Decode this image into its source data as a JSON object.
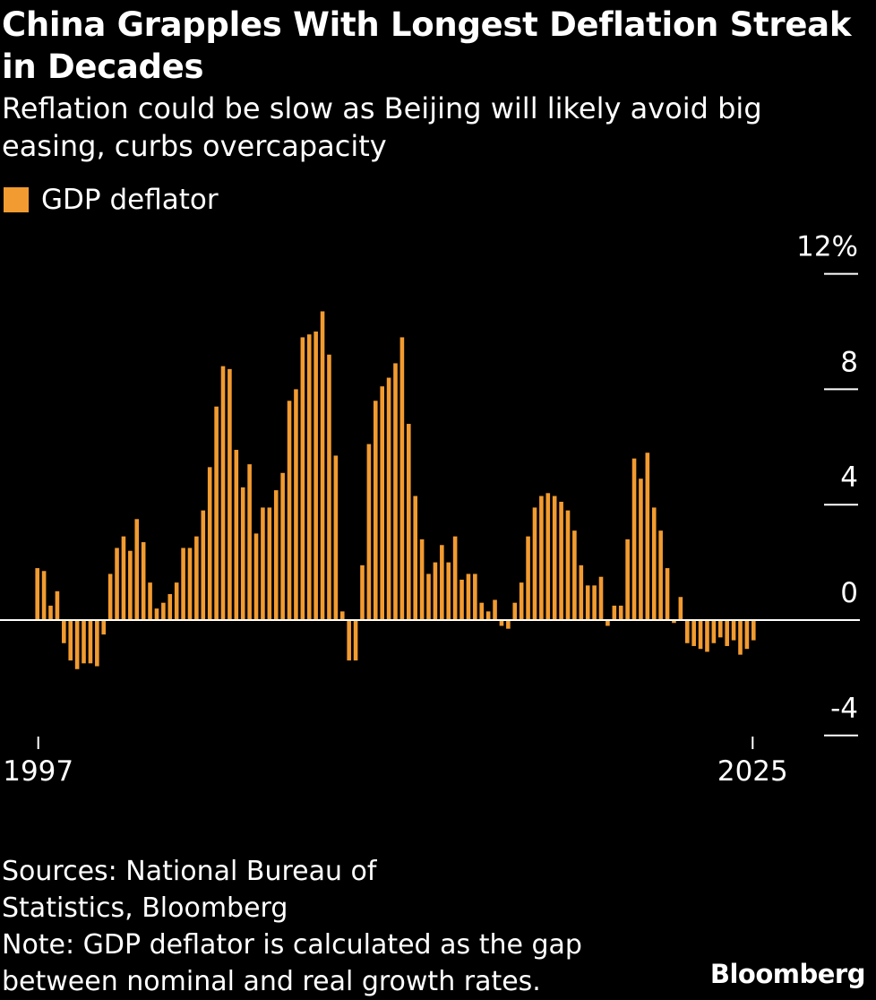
{
  "header": {
    "title_line1": "China Grapples With Longest Deflation Streak",
    "title_line2": "in Decades",
    "subtitle_line1": "Reflation could be slow as Beijing will likely avoid big",
    "subtitle_line2": "easing, curbs overcapacity"
  },
  "legend": {
    "label": "GDP deflator",
    "color": "#f29b30"
  },
  "colors": {
    "background": "#000000",
    "bar": "#f29b30",
    "text": "#ffffff",
    "zero_line": "#ffffff"
  },
  "footer": {
    "sources_line1": "Sources: National Bureau of",
    "sources_line2": "Statistics, Bloomberg",
    "note_line1": "Note: GDP deflator is calculated as the gap",
    "note_line2": "between nominal and real growth rates."
  },
  "brand": "Bloomberg",
  "chart_data": {
    "type": "bar",
    "title": "China Grapples With Longest Deflation Streak in Decades",
    "series": [
      {
        "name": "GDP deflator",
        "unit": "%",
        "frequency": "quarterly"
      }
    ],
    "x_start_label": "1997",
    "x_end_label": "2025",
    "y_ticks": [
      "12%",
      "8",
      "4",
      "0",
      "-4"
    ],
    "y_tick_values": [
      12,
      8,
      4,
      0,
      -4
    ],
    "ylim": [
      -4,
      12
    ],
    "values": [
      1.8,
      1.7,
      0.5,
      1.0,
      -0.8,
      -1.4,
      -1.7,
      -1.5,
      -1.5,
      -1.6,
      -0.5,
      1.6,
      2.5,
      2.9,
      2.4,
      3.5,
      2.7,
      1.3,
      0.4,
      0.6,
      0.9,
      1.3,
      2.5,
      2.5,
      2.9,
      3.8,
      5.3,
      7.4,
      8.8,
      8.7,
      5.9,
      4.6,
      5.4,
      3.0,
      3.9,
      3.9,
      4.5,
      5.1,
      7.6,
      8.0,
      9.8,
      9.9,
      10.0,
      10.7,
      9.2,
      5.7,
      0.3,
      -1.4,
      -1.4,
      1.9,
      6.1,
      7.6,
      8.1,
      8.4,
      8.9,
      9.8,
      6.8,
      4.3,
      2.8,
      1.6,
      2.0,
      2.6,
      2.0,
      2.9,
      1.4,
      1.6,
      1.6,
      0.6,
      0.3,
      0.7,
      -0.2,
      -0.3,
      0.6,
      1.3,
      2.9,
      3.9,
      4.3,
      4.4,
      4.3,
      4.1,
      3.8,
      3.1,
      1.9,
      1.2,
      1.2,
      1.5,
      -0.2,
      0.5,
      0.5,
      2.8,
      5.6,
      4.9,
      5.8,
      3.9,
      3.1,
      1.8,
      -0.1,
      0.8,
      -0.8,
      -0.9,
      -1.0,
      -1.1,
      -0.8,
      -0.6,
      -0.9,
      -0.7,
      -1.2,
      -1.0,
      -0.7
    ]
  }
}
